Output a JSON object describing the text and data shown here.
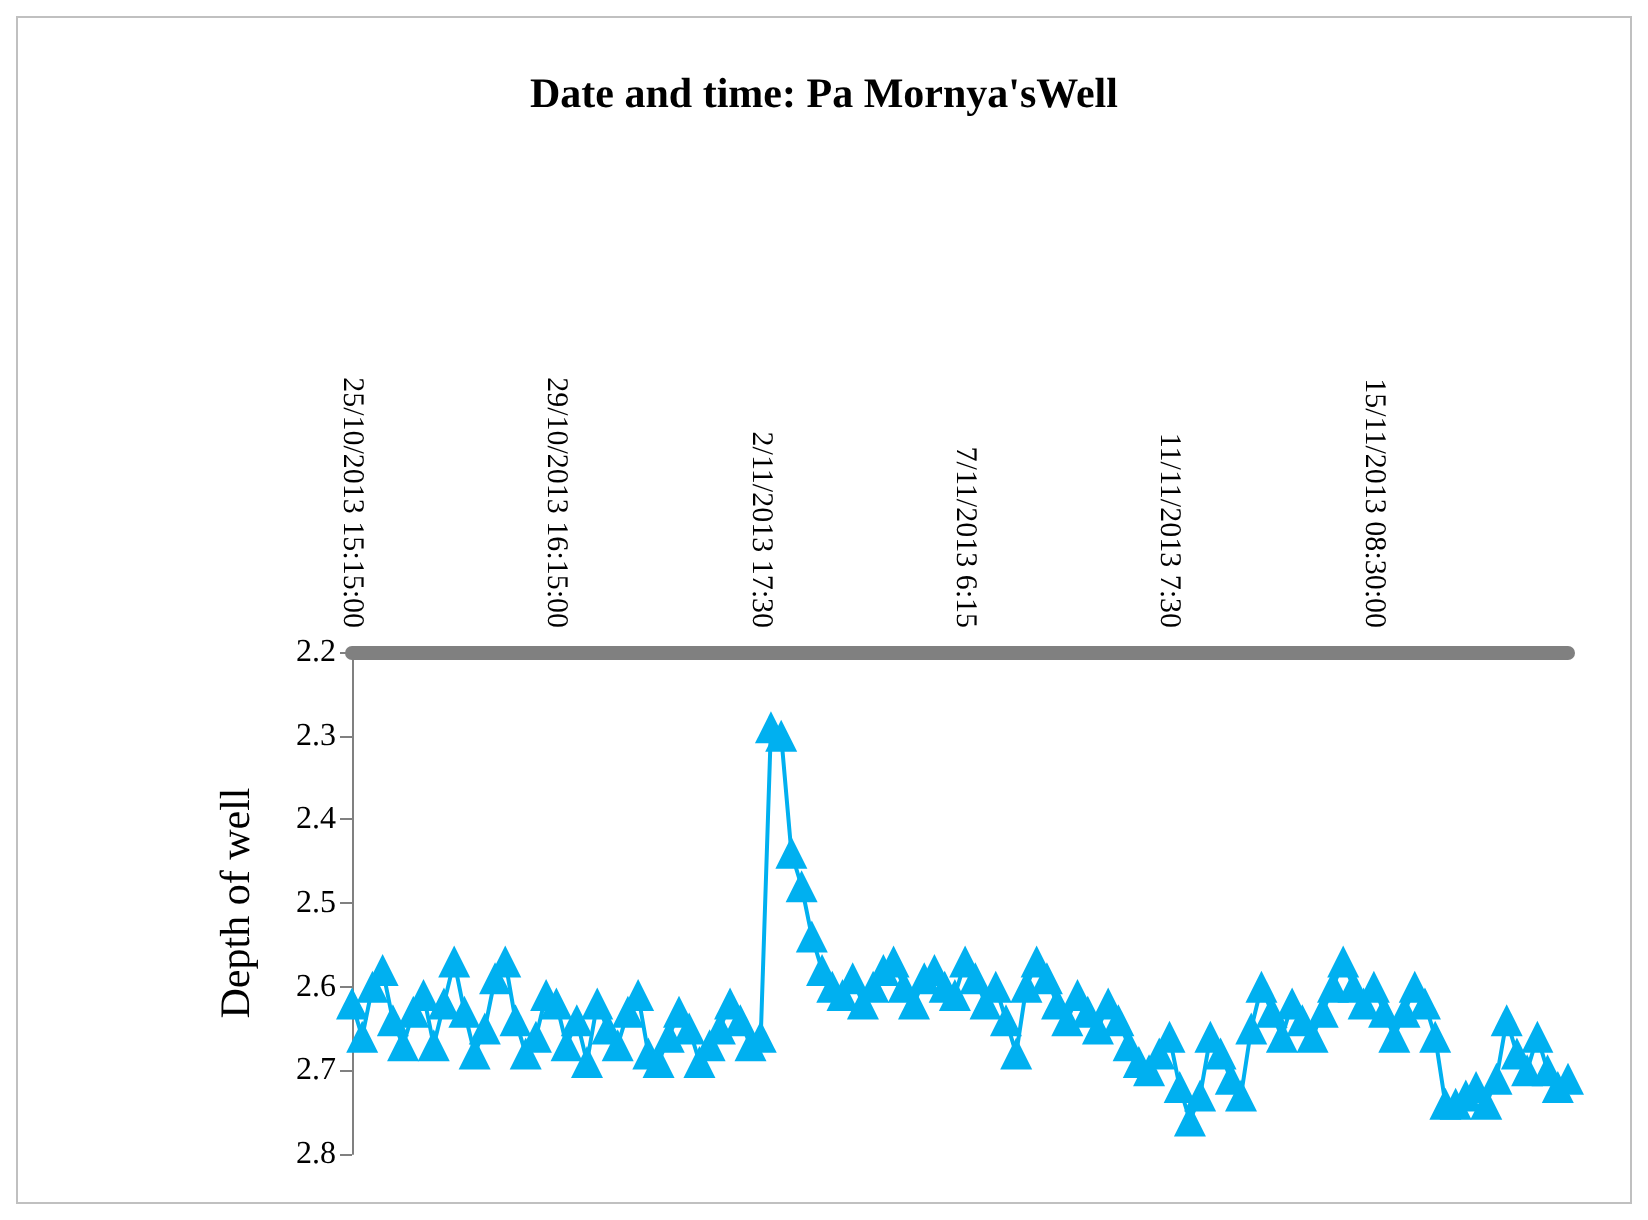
{
  "chart_data": {
    "type": "line",
    "title": "Date and time: Pa Mornya'sWell",
    "ylabel": "Depth of well",
    "categories": [
      "25/10/2013 15:15:00",
      null,
      null,
      null,
      null,
      null,
      null,
      null,
      null,
      null,
      null,
      null,
      null,
      null,
      null,
      null,
      null,
      null,
      null,
      null,
      "29/10/2013 16:15:00",
      null,
      null,
      null,
      null,
      null,
      null,
      null,
      null,
      null,
      null,
      null,
      null,
      null,
      null,
      null,
      null,
      null,
      null,
      null,
      "2/11/2013 17:30",
      null,
      null,
      null,
      null,
      null,
      null,
      null,
      null,
      null,
      null,
      null,
      null,
      null,
      null,
      null,
      null,
      null,
      null,
      null,
      "7/11/2013 6:15",
      null,
      null,
      null,
      null,
      null,
      null,
      null,
      null,
      null,
      null,
      null,
      null,
      null,
      null,
      null,
      null,
      null,
      null,
      null,
      "11/11/2013 7:30",
      null,
      null,
      null,
      null,
      null,
      null,
      null,
      null,
      null,
      null,
      null,
      null,
      null,
      null,
      null,
      null,
      null,
      null,
      null,
      "15/11/2013 08:30:00",
      null,
      null,
      null,
      null,
      null,
      null,
      null,
      null,
      null,
      null,
      null,
      null,
      null,
      null,
      null,
      null,
      null,
      null,
      null
    ],
    "series": [
      {
        "color": "#00b0f0",
        "values": [
          2.62,
          2.66,
          2.6,
          2.58,
          2.64,
          2.67,
          2.63,
          2.61,
          2.67,
          2.62,
          2.57,
          2.63,
          2.68,
          2.65,
          2.59,
          2.57,
          2.64,
          2.68,
          2.66,
          2.61,
          2.62,
          2.67,
          2.64,
          2.69,
          2.62,
          2.65,
          2.67,
          2.63,
          2.61,
          2.68,
          2.69,
          2.66,
          2.63,
          2.65,
          2.69,
          2.67,
          2.65,
          2.62,
          2.64,
          2.67,
          2.66,
          2.29,
          2.3,
          2.44,
          2.48,
          2.54,
          2.58,
          2.6,
          2.61,
          2.59,
          2.62,
          2.6,
          2.58,
          2.57,
          2.6,
          2.62,
          2.59,
          2.58,
          2.6,
          2.61,
          2.57,
          2.59,
          2.62,
          2.6,
          2.64,
          2.68,
          2.6,
          2.57,
          2.59,
          2.62,
          2.64,
          2.61,
          2.63,
          2.65,
          2.62,
          2.64,
          2.67,
          2.69,
          2.7,
          2.68,
          2.66,
          2.72,
          2.76,
          2.73,
          2.66,
          2.68,
          2.71,
          2.73,
          2.65,
          2.6,
          2.63,
          2.66,
          2.62,
          2.64,
          2.66,
          2.63,
          2.6,
          2.57,
          2.6,
          2.62,
          2.6,
          2.63,
          2.66,
          2.63,
          2.6,
          2.62,
          2.66,
          2.74,
          2.74,
          2.73,
          2.72,
          2.74,
          2.71,
          2.64,
          2.68,
          2.7,
          2.66,
          2.7,
          2.72,
          2.71
        ]
      }
    ],
    "ylim": [
      2.8,
      2.2
    ],
    "yticks": [
      2.2,
      2.3,
      2.4,
      2.5,
      2.6,
      2.7,
      2.8
    ],
    "grid": false,
    "marker": "triangle",
    "line_style": "solid"
  }
}
